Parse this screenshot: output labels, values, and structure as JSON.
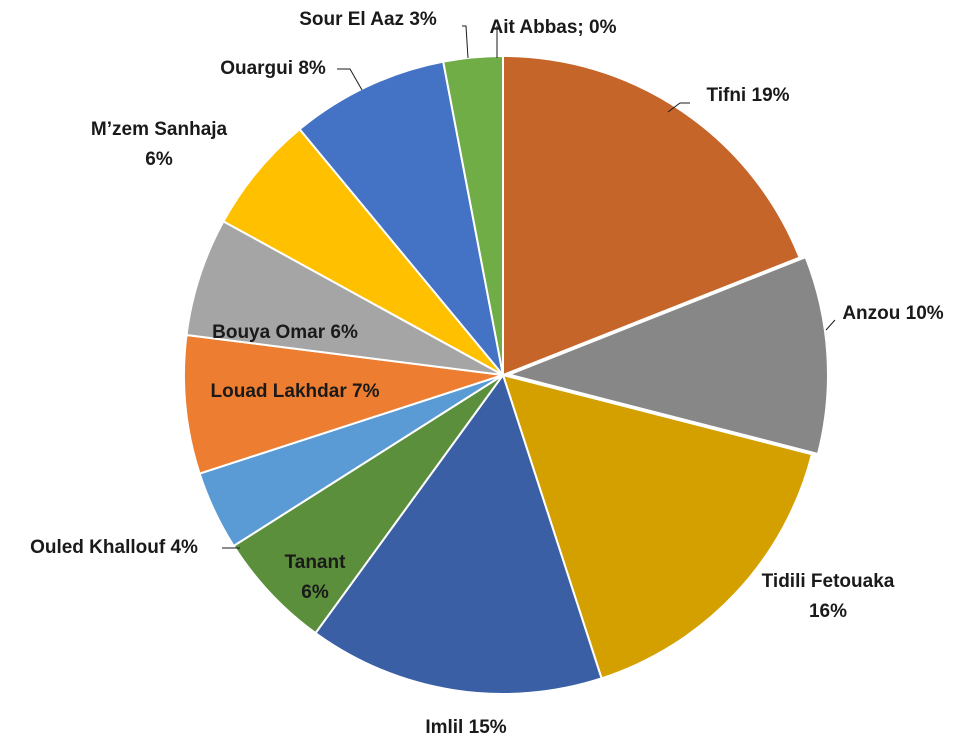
{
  "chart_data": {
    "type": "pie",
    "categories": [
      "Tifni",
      "Anzou",
      "Tidili Fetouaka",
      "Imlil",
      "Tanant",
      "Ouled Khallouf",
      "Louad Lakhdar",
      "Bouya Omar",
      "M’zem Sanhaja",
      "Ouargui",
      "Sour El Aaz",
      "Ait Abbas;"
    ],
    "values": [
      19,
      10,
      16,
      15,
      6,
      4,
      7,
      6,
      6,
      8,
      3,
      0
    ],
    "value_labels": [
      "19%",
      "10%",
      "16%",
      "15%",
      "6%",
      "4%",
      "7%",
      "6%",
      "6%",
      "8%",
      "3%",
      "0%"
    ],
    "colors": [
      "#c5652a",
      "#878787",
      "#d4a000",
      "#3a5fa5",
      "#5b8f3c",
      "#5b9bd5",
      "#ed7d31",
      "#a5a5a5",
      "#ffc000",
      "#4472c4",
      "#70ad47",
      "#264478"
    ]
  }
}
